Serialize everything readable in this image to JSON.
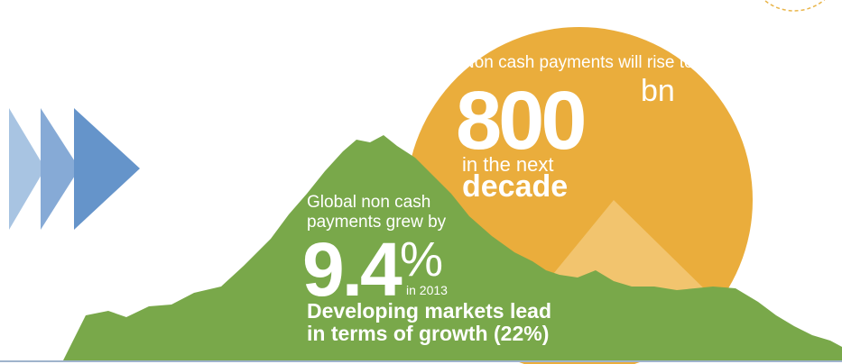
{
  "sun": {
    "intro": "Non cash payments will rise to",
    "amount": "800",
    "unit": "bn",
    "line2": "in the next",
    "line3": "decade"
  },
  "mountain": {
    "line1": "Global non cash",
    "line2": "payments grew by",
    "rate": "9.4",
    "percent": "%",
    "year": "in 2013",
    "note1": "Developing markets lead",
    "note2": "in terms of growth (22%)"
  }
}
